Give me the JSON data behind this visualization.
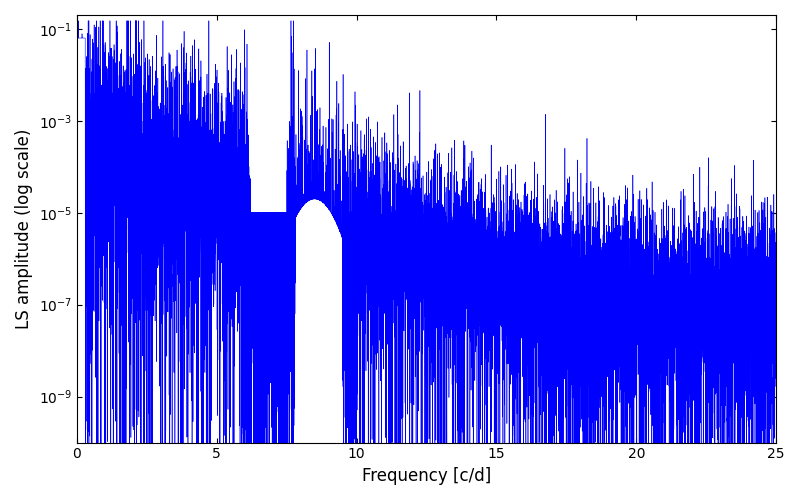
{
  "xlabel": "Frequency [c/d]",
  "ylabel": "LS amplitude (log scale)",
  "xlim": [
    0,
    25
  ],
  "ylim": [
    1e-10,
    0.2
  ],
  "line_color": "#0000ff",
  "line_width": 0.4,
  "figsize": [
    8.0,
    5.0
  ],
  "dpi": 100,
  "seed": 12345,
  "n_points": 15000,
  "freq_max": 25.0
}
